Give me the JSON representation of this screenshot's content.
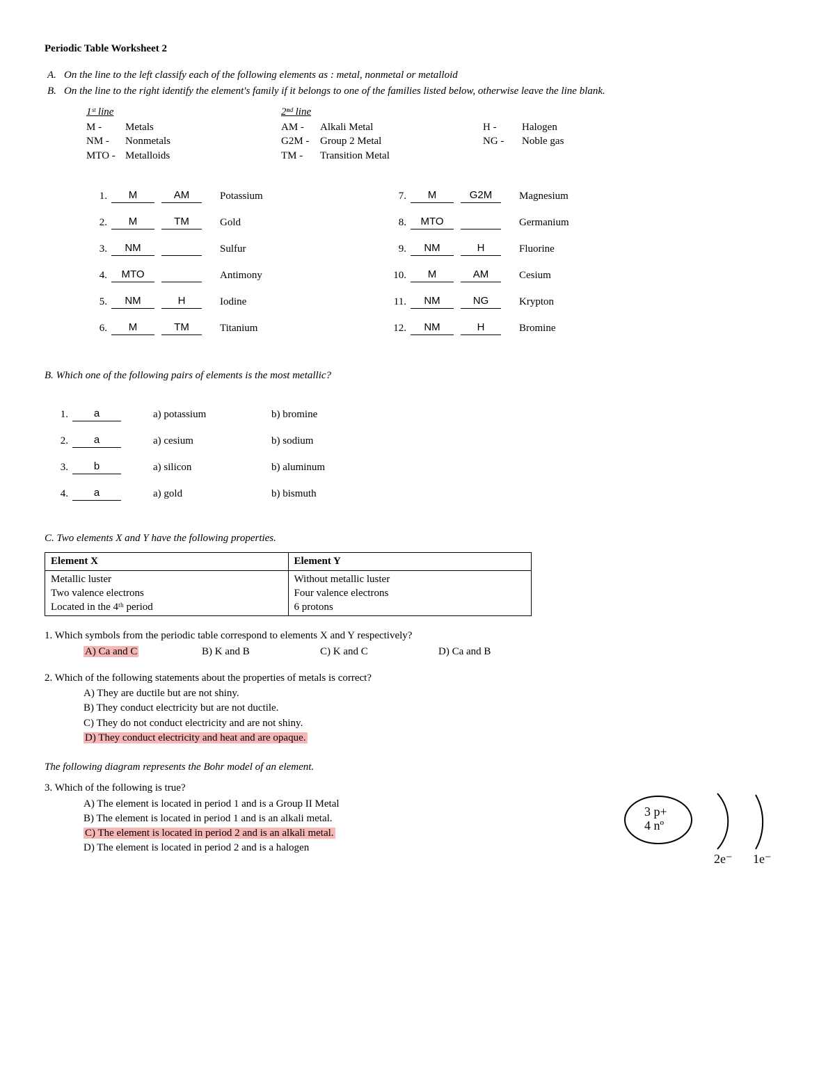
{
  "title": "Periodic Table Worksheet 2",
  "instructions": {
    "A": "On the line to the left classify each of the following elements as : metal, nonmetal or metalloid",
    "B": "On the line to the right identify the element's family if it belongs to one of the families listed below, otherwise leave the line blank."
  },
  "legend": {
    "col1": {
      "header": "1ˢᵗ line",
      "items": [
        {
          "code": "M -",
          "label": "Metals"
        },
        {
          "code": "NM -",
          "label": "Nonmetals"
        },
        {
          "code": "MTO -",
          "label": "Metalloids"
        }
      ]
    },
    "col2": {
      "header": "2ⁿᵈ line",
      "items": [
        {
          "code": "AM -",
          "label": "Alkali Metal"
        },
        {
          "code": "G2M -",
          "label": "Group 2 Metal"
        },
        {
          "code": "TM -",
          "label": "Transition Metal"
        }
      ]
    },
    "col3": {
      "header": "",
      "items": [
        {
          "code": "H -",
          "label": "Halogen"
        },
        {
          "code": "NG -",
          "label": "Noble gas"
        }
      ]
    }
  },
  "sectionA": {
    "left": [
      {
        "n": "1.",
        "a": "M",
        "b": "AM",
        "el": "Potassium"
      },
      {
        "n": "2.",
        "a": "M",
        "b": "TM",
        "el": "Gold"
      },
      {
        "n": "3.",
        "a": "NM",
        "b": "",
        "el": "Sulfur"
      },
      {
        "n": "4.",
        "a": "MTO",
        "b": "",
        "el": "Antimony"
      },
      {
        "n": "5.",
        "a": "NM",
        "b": "H",
        "el": "Iodine"
      },
      {
        "n": "6.",
        "a": "M",
        "b": "TM",
        "el": "Titanium"
      }
    ],
    "right": [
      {
        "n": "7.",
        "a": "M",
        "b": "G2M",
        "el": "Magnesium"
      },
      {
        "n": "8.",
        "a": "MTO",
        "b": "",
        "el": "Germanium"
      },
      {
        "n": "9.",
        "a": "NM",
        "b": "H",
        "el": "Fluorine"
      },
      {
        "n": "10.",
        "a": "M",
        "b": "AM",
        "el": "Cesium"
      },
      {
        "n": "11.",
        "a": "NM",
        "b": "NG",
        "el": "Krypton"
      },
      {
        "n": "12.",
        "a": "NM",
        "b": "H",
        "el": "Bromine"
      }
    ]
  },
  "sectionB": {
    "heading": "B.   Which one of the following pairs of elements is the most metallic?",
    "rows": [
      {
        "n": "1.",
        "ans": "a",
        "a": "a) potassium",
        "b": "b) bromine"
      },
      {
        "n": "2.",
        "ans": "a",
        "a": "a) cesium",
        "b": "b) sodium"
      },
      {
        "n": "3.",
        "ans": "b",
        "a": "a) silicon",
        "b": "b) aluminum"
      },
      {
        "n": "4.",
        "ans": "a",
        "a": "a)  gold",
        "b": "b) bismuth"
      }
    ]
  },
  "sectionC": {
    "heading": "C.   Two elements X and Y have the following properties.",
    "table": {
      "headX": "Element X",
      "headY": "Element Y",
      "x": [
        "Metallic luster",
        "Two valence electrons",
        "Located in the 4ᵗʰ period"
      ],
      "y": [
        "Without metallic luster",
        "Four valence electrons",
        "6 protons"
      ]
    },
    "q1": {
      "text": "1. Which symbols from the periodic table correspond to elements X and Y respectively?",
      "opts": {
        "A": "A) Ca and C",
        "B": "B) K and B",
        "C": "C) K and C",
        "D": "D) Ca and B"
      },
      "highlight": "A"
    },
    "q2": {
      "text": "2. Which of the following statements about the properties of metals is correct?",
      "opts": [
        "A) They are ductile but are not shiny.",
        "B) They conduct electricity but are not ductile.",
        "C) They do not conduct electricity and are not shiny.",
        "D) They conduct electricity and heat and are opaque."
      ],
      "highlight": 3
    },
    "diag_caption": "The following diagram represents the Bohr model of an element.",
    "q3": {
      "text": "3.  Which of the following is true?",
      "opts": [
        "A) The element is located in period 1 and is a Group II Metal",
        "B) The element is located in period 1 and is an alkali metal.",
        "C) The element is located in period 2 and is an alkali metal.",
        "D) The element is located in period 2 and is a halogen"
      ],
      "highlight": 2
    },
    "bohr": {
      "nucleus_line1": "3 p+",
      "nucleus_line2": "4 nº",
      "shell1": "2e⁻",
      "shell2": "1e⁻"
    }
  },
  "colors": {
    "highlight": "#f7b7b7",
    "text": "#000000",
    "background": "#ffffff",
    "border": "#000000"
  }
}
